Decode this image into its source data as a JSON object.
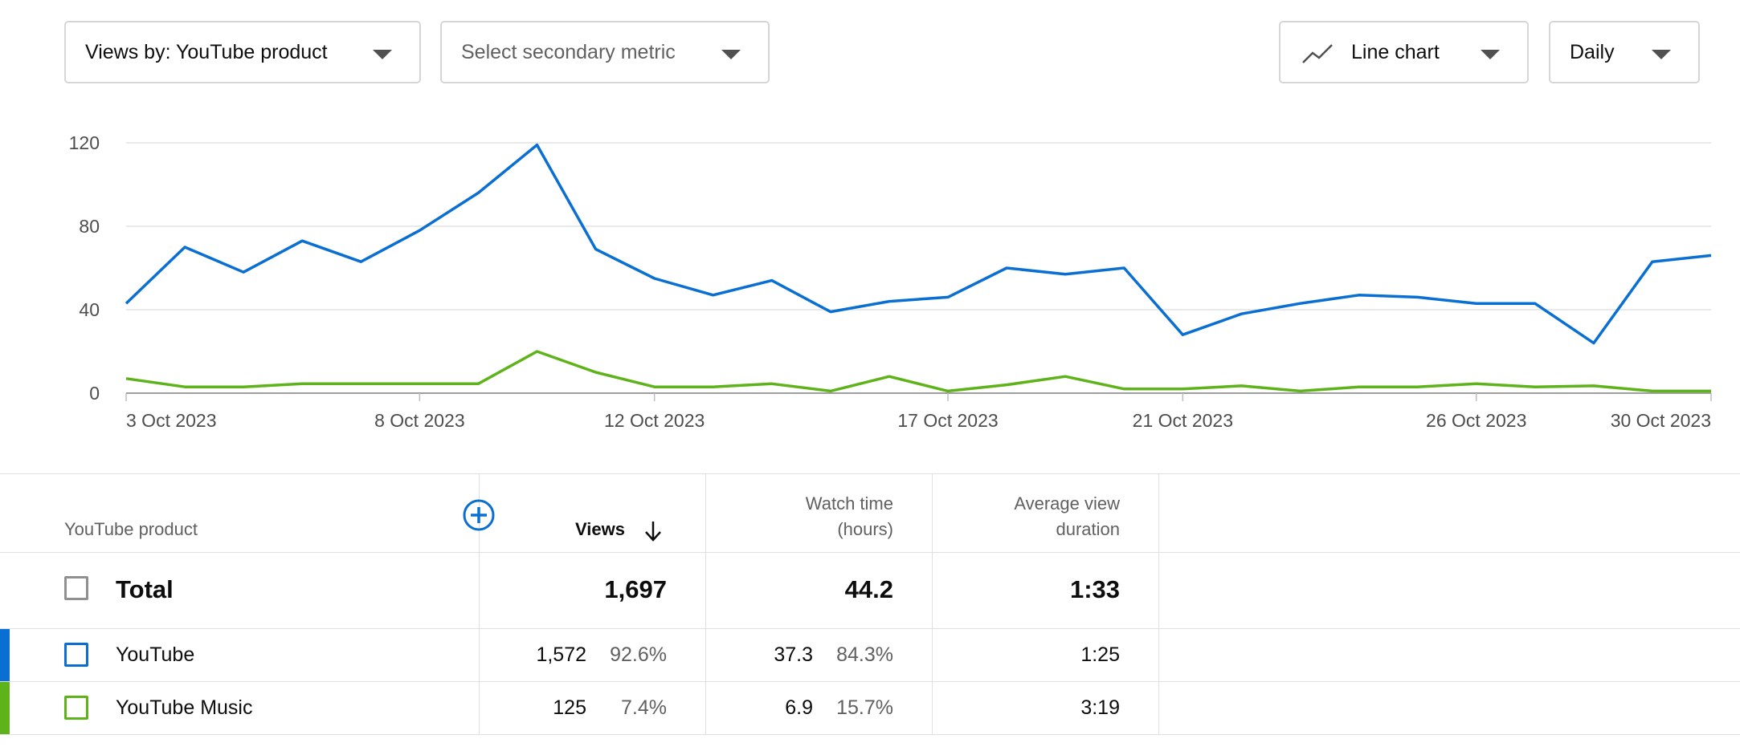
{
  "controls": {
    "views_by": "Views by: YouTube product",
    "secondary_metric_placeholder": "Select secondary metric",
    "chart_type": "Line chart",
    "period": "Daily"
  },
  "chart_data": {
    "type": "line",
    "title": "",
    "xlabel": "",
    "ylabel": "",
    "x": [
      "3 Oct 2023",
      "4 Oct 2023",
      "5 Oct 2023",
      "6 Oct 2023",
      "7 Oct 2023",
      "8 Oct 2023",
      "9 Oct 2023",
      "10 Oct 2023",
      "11 Oct 2023",
      "12 Oct 2023",
      "13 Oct 2023",
      "14 Oct 2023",
      "15 Oct 2023",
      "16 Oct 2023",
      "17 Oct 2023",
      "18 Oct 2023",
      "19 Oct 2023",
      "20 Oct 2023",
      "21 Oct 2023",
      "22 Oct 2023",
      "23 Oct 2023",
      "24 Oct 2023",
      "25 Oct 2023",
      "26 Oct 2023",
      "27 Oct 2023",
      "28 Oct 2023",
      "29 Oct 2023",
      "30 Oct 2023"
    ],
    "x_tick_labels": [
      "3 Oct 2023",
      "8 Oct 2023",
      "12 Oct 2023",
      "17 Oct 2023",
      "21 Oct 2023",
      "26 Oct 2023",
      "30 Oct 2023"
    ],
    "y_ticks": [
      0,
      40,
      80,
      120
    ],
    "ylim": [
      0,
      120
    ],
    "grid": true,
    "series": [
      {
        "values": [
          43,
          70,
          58,
          73,
          63,
          78,
          96,
          119,
          69,
          55,
          47,
          54,
          39,
          44,
          46,
          60,
          57,
          60,
          28,
          38,
          43,
          47,
          46,
          43,
          43,
          24,
          63,
          66
        ],
        "color": "#0a6fd2"
      },
      {
        "values": [
          7,
          3,
          3,
          4.5,
          4.5,
          4.5,
          4.5,
          20,
          10,
          3,
          3,
          4.5,
          1,
          8,
          1,
          4,
          8,
          2,
          2,
          3.5,
          1,
          3,
          3,
          4.5,
          3,
          3.5,
          1,
          1
        ],
        "color": "#5fb31a"
      }
    ]
  },
  "table": {
    "headers": {
      "dimension": "YouTube product",
      "views": "Views",
      "watch_time_line1": "Watch time",
      "watch_time_line2": "(hours)",
      "avg_duration_line1": "Average view",
      "avg_duration_line2": "duration"
    },
    "total": {
      "label": "Total",
      "views": "1,697",
      "watch_time": "44.2",
      "avg_duration": "1:33"
    },
    "rows": [
      {
        "label": "YouTube",
        "views": "1,572",
        "views_pct": "92.6%",
        "watch_time": "37.3",
        "watch_time_pct": "84.3%",
        "avg_duration": "1:25",
        "color": "#0a6fd2"
      },
      {
        "label": "YouTube Music",
        "views": "125",
        "views_pct": "7.4%",
        "watch_time": "6.9",
        "watch_time_pct": "15.7%",
        "avg_duration": "3:19",
        "color": "#5fb31a"
      }
    ]
  }
}
